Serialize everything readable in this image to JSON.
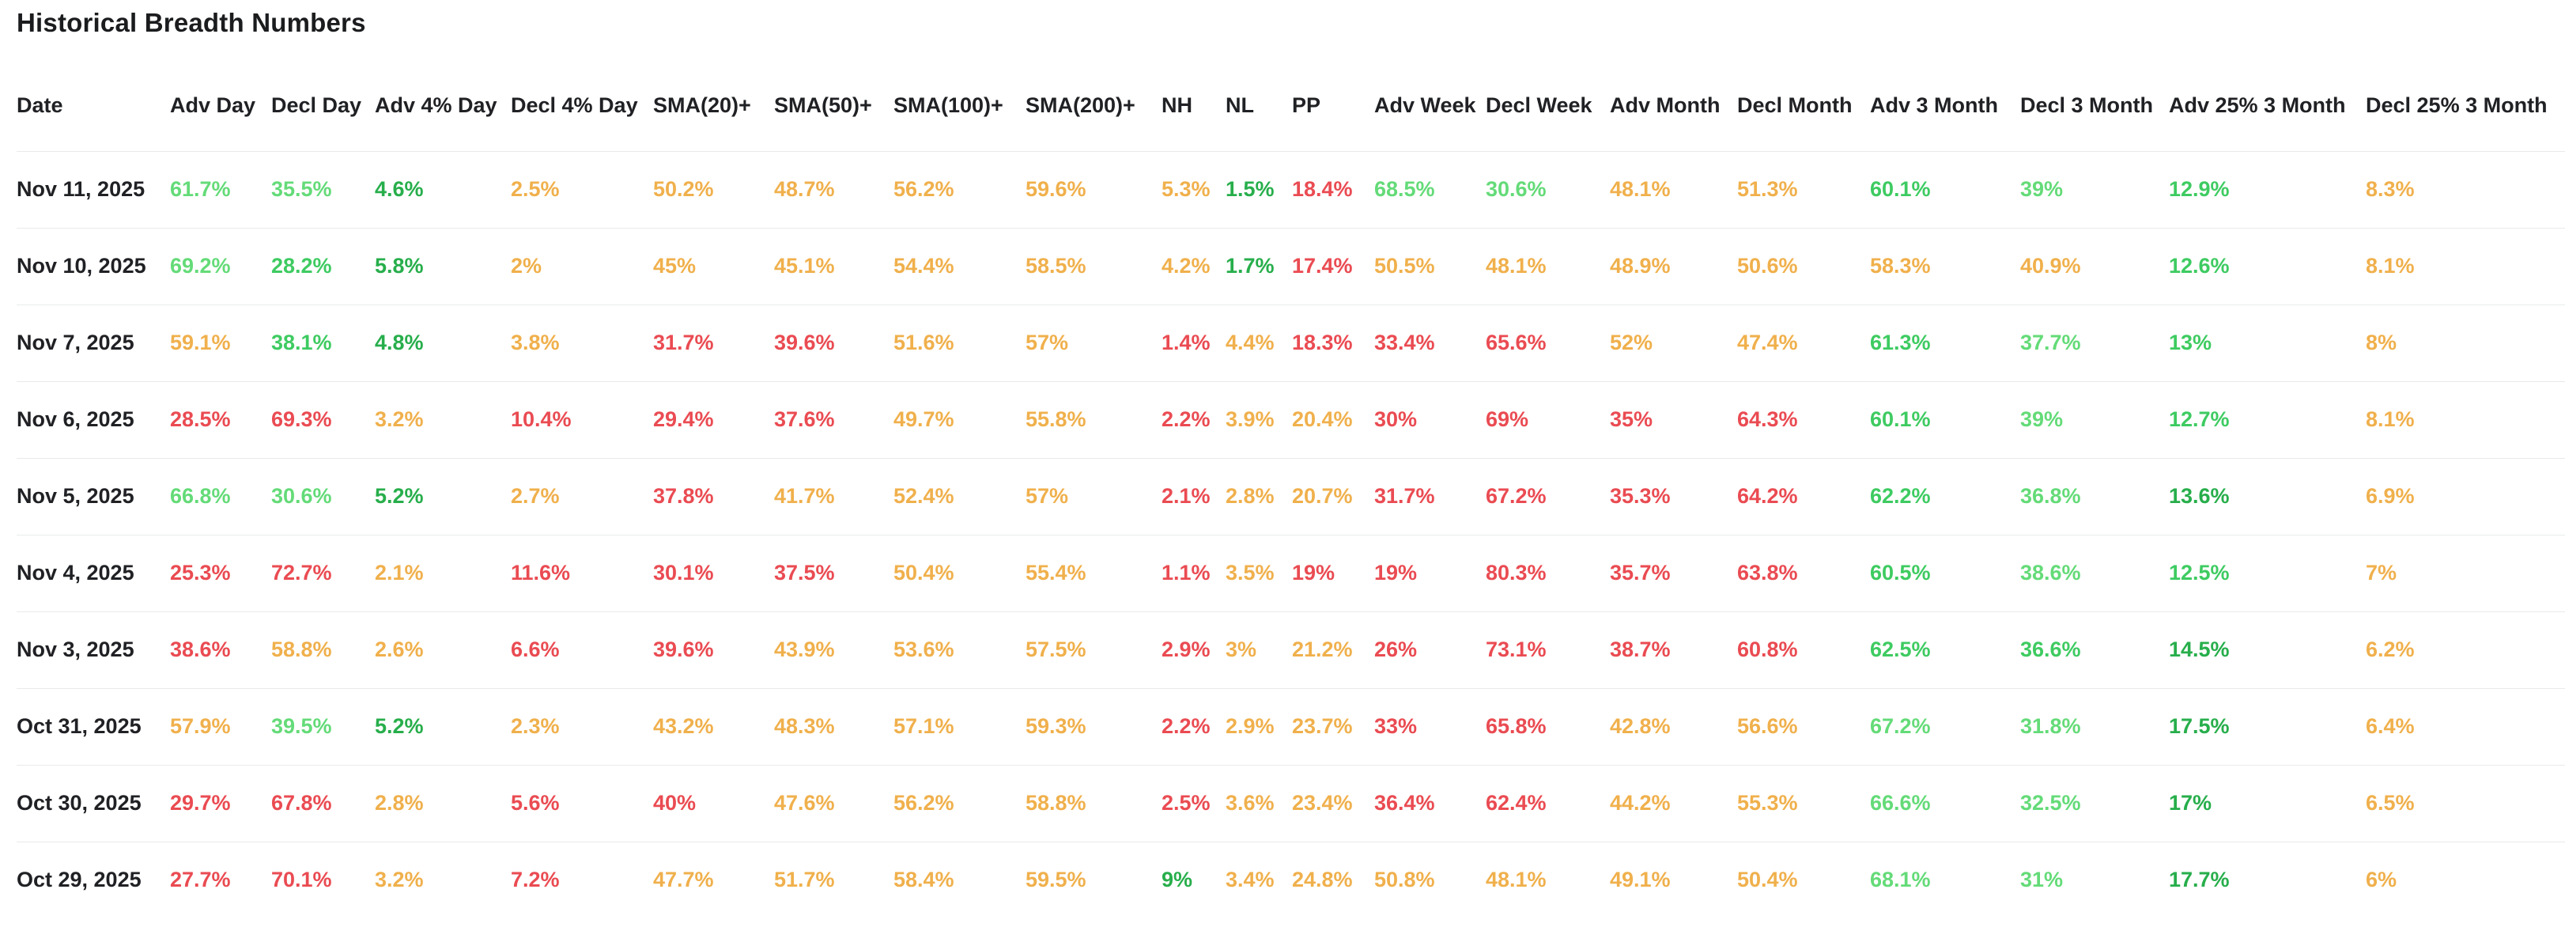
{
  "title": "Historical Breadth Numbers",
  "palette": {
    "g1": "#64db78",
    "g2": "#3ecb61",
    "g3": "#27ae4b",
    "y": "#f0b04c",
    "r": "#ea4b52"
  },
  "table": {
    "columns": [
      "Date",
      "Adv Day",
      "Decl Day",
      "Adv 4% Day",
      "Decl 4% Day",
      "SMA(20)+",
      "SMA(50)+",
      "SMA(100)+",
      "SMA(200)+",
      "NH",
      "NL",
      "PP",
      "Adv Week",
      "Decl Week",
      "Adv Month",
      "Decl Month",
      "Adv 3 Month",
      "Decl 3 Month",
      "Adv 25% 3 Month",
      "Decl 25% 3 Month"
    ],
    "rows": [
      {
        "date": "Nov 11, 2025",
        "cells": [
          [
            "61.7%",
            "g1"
          ],
          [
            "35.5%",
            "g1"
          ],
          [
            "4.6%",
            "g3"
          ],
          [
            "2.5%",
            "y"
          ],
          [
            "50.2%",
            "y"
          ],
          [
            "48.7%",
            "y"
          ],
          [
            "56.2%",
            "y"
          ],
          [
            "59.6%",
            "y"
          ],
          [
            "5.3%",
            "y"
          ],
          [
            "1.5%",
            "g3"
          ],
          [
            "18.4%",
            "r"
          ],
          [
            "68.5%",
            "g1"
          ],
          [
            "30.6%",
            "g1"
          ],
          [
            "48.1%",
            "y"
          ],
          [
            "51.3%",
            "y"
          ],
          [
            "60.1%",
            "g2"
          ],
          [
            "39%",
            "g1"
          ],
          [
            "12.9%",
            "g2"
          ],
          [
            "8.3%",
            "y"
          ]
        ]
      },
      {
        "date": "Nov 10, 2025",
        "cells": [
          [
            "69.2%",
            "g1"
          ],
          [
            "28.2%",
            "g2"
          ],
          [
            "5.8%",
            "g3"
          ],
          [
            "2%",
            "y"
          ],
          [
            "45%",
            "y"
          ],
          [
            "45.1%",
            "y"
          ],
          [
            "54.4%",
            "y"
          ],
          [
            "58.5%",
            "y"
          ],
          [
            "4.2%",
            "y"
          ],
          [
            "1.7%",
            "g3"
          ],
          [
            "17.4%",
            "r"
          ],
          [
            "50.5%",
            "y"
          ],
          [
            "48.1%",
            "y"
          ],
          [
            "48.9%",
            "y"
          ],
          [
            "50.6%",
            "y"
          ],
          [
            "58.3%",
            "y"
          ],
          [
            "40.9%",
            "y"
          ],
          [
            "12.6%",
            "g2"
          ],
          [
            "8.1%",
            "y"
          ]
        ]
      },
      {
        "date": "Nov 7, 2025",
        "cells": [
          [
            "59.1%",
            "y"
          ],
          [
            "38.1%",
            "g2"
          ],
          [
            "4.8%",
            "g3"
          ],
          [
            "3.8%",
            "y"
          ],
          [
            "31.7%",
            "r"
          ],
          [
            "39.6%",
            "r"
          ],
          [
            "51.6%",
            "y"
          ],
          [
            "57%",
            "y"
          ],
          [
            "1.4%",
            "r"
          ],
          [
            "4.4%",
            "y"
          ],
          [
            "18.3%",
            "r"
          ],
          [
            "33.4%",
            "r"
          ],
          [
            "65.6%",
            "r"
          ],
          [
            "52%",
            "y"
          ],
          [
            "47.4%",
            "y"
          ],
          [
            "61.3%",
            "g2"
          ],
          [
            "37.7%",
            "g1"
          ],
          [
            "13%",
            "g2"
          ],
          [
            "8%",
            "y"
          ]
        ]
      },
      {
        "date": "Nov 6, 2025",
        "cells": [
          [
            "28.5%",
            "r"
          ],
          [
            "69.3%",
            "r"
          ],
          [
            "3.2%",
            "y"
          ],
          [
            "10.4%",
            "r"
          ],
          [
            "29.4%",
            "r"
          ],
          [
            "37.6%",
            "r"
          ],
          [
            "49.7%",
            "y"
          ],
          [
            "55.8%",
            "y"
          ],
          [
            "2.2%",
            "r"
          ],
          [
            "3.9%",
            "y"
          ],
          [
            "20.4%",
            "y"
          ],
          [
            "30%",
            "r"
          ],
          [
            "69%",
            "r"
          ],
          [
            "35%",
            "r"
          ],
          [
            "64.3%",
            "r"
          ],
          [
            "60.1%",
            "g2"
          ],
          [
            "39%",
            "g1"
          ],
          [
            "12.7%",
            "g2"
          ],
          [
            "8.1%",
            "y"
          ]
        ]
      },
      {
        "date": "Nov 5, 2025",
        "cells": [
          [
            "66.8%",
            "g1"
          ],
          [
            "30.6%",
            "g1"
          ],
          [
            "5.2%",
            "g3"
          ],
          [
            "2.7%",
            "y"
          ],
          [
            "37.8%",
            "r"
          ],
          [
            "41.7%",
            "y"
          ],
          [
            "52.4%",
            "y"
          ],
          [
            "57%",
            "y"
          ],
          [
            "2.1%",
            "r"
          ],
          [
            "2.8%",
            "y"
          ],
          [
            "20.7%",
            "y"
          ],
          [
            "31.7%",
            "r"
          ],
          [
            "67.2%",
            "r"
          ],
          [
            "35.3%",
            "r"
          ],
          [
            "64.2%",
            "r"
          ],
          [
            "62.2%",
            "g2"
          ],
          [
            "36.8%",
            "g1"
          ],
          [
            "13.6%",
            "g3"
          ],
          [
            "6.9%",
            "y"
          ]
        ]
      },
      {
        "date": "Nov 4, 2025",
        "cells": [
          [
            "25.3%",
            "r"
          ],
          [
            "72.7%",
            "r"
          ],
          [
            "2.1%",
            "y"
          ],
          [
            "11.6%",
            "r"
          ],
          [
            "30.1%",
            "r"
          ],
          [
            "37.5%",
            "r"
          ],
          [
            "50.4%",
            "y"
          ],
          [
            "55.4%",
            "y"
          ],
          [
            "1.1%",
            "r"
          ],
          [
            "3.5%",
            "y"
          ],
          [
            "19%",
            "r"
          ],
          [
            "19%",
            "r"
          ],
          [
            "80.3%",
            "r"
          ],
          [
            "35.7%",
            "r"
          ],
          [
            "63.8%",
            "r"
          ],
          [
            "60.5%",
            "g2"
          ],
          [
            "38.6%",
            "g1"
          ],
          [
            "12.5%",
            "g2"
          ],
          [
            "7%",
            "y"
          ]
        ]
      },
      {
        "date": "Nov 3, 2025",
        "cells": [
          [
            "38.6%",
            "r"
          ],
          [
            "58.8%",
            "y"
          ],
          [
            "2.6%",
            "y"
          ],
          [
            "6.6%",
            "r"
          ],
          [
            "39.6%",
            "r"
          ],
          [
            "43.9%",
            "y"
          ],
          [
            "53.6%",
            "y"
          ],
          [
            "57.5%",
            "y"
          ],
          [
            "2.9%",
            "r"
          ],
          [
            "3%",
            "y"
          ],
          [
            "21.2%",
            "y"
          ],
          [
            "26%",
            "r"
          ],
          [
            "73.1%",
            "r"
          ],
          [
            "38.7%",
            "r"
          ],
          [
            "60.8%",
            "r"
          ],
          [
            "62.5%",
            "g2"
          ],
          [
            "36.6%",
            "g2"
          ],
          [
            "14.5%",
            "g3"
          ],
          [
            "6.2%",
            "y"
          ]
        ]
      },
      {
        "date": "Oct 31, 2025",
        "cells": [
          [
            "57.9%",
            "y"
          ],
          [
            "39.5%",
            "g1"
          ],
          [
            "5.2%",
            "g3"
          ],
          [
            "2.3%",
            "y"
          ],
          [
            "43.2%",
            "y"
          ],
          [
            "48.3%",
            "y"
          ],
          [
            "57.1%",
            "y"
          ],
          [
            "59.3%",
            "y"
          ],
          [
            "2.2%",
            "r"
          ],
          [
            "2.9%",
            "y"
          ],
          [
            "23.7%",
            "y"
          ],
          [
            "33%",
            "r"
          ],
          [
            "65.8%",
            "r"
          ],
          [
            "42.8%",
            "y"
          ],
          [
            "56.6%",
            "y"
          ],
          [
            "67.2%",
            "g1"
          ],
          [
            "31.8%",
            "g1"
          ],
          [
            "17.5%",
            "g3"
          ],
          [
            "6.4%",
            "y"
          ]
        ]
      },
      {
        "date": "Oct 30, 2025",
        "cells": [
          [
            "29.7%",
            "r"
          ],
          [
            "67.8%",
            "r"
          ],
          [
            "2.8%",
            "y"
          ],
          [
            "5.6%",
            "r"
          ],
          [
            "40%",
            "r"
          ],
          [
            "47.6%",
            "y"
          ],
          [
            "56.2%",
            "y"
          ],
          [
            "58.8%",
            "y"
          ],
          [
            "2.5%",
            "r"
          ],
          [
            "3.6%",
            "y"
          ],
          [
            "23.4%",
            "y"
          ],
          [
            "36.4%",
            "r"
          ],
          [
            "62.4%",
            "r"
          ],
          [
            "44.2%",
            "y"
          ],
          [
            "55.3%",
            "y"
          ],
          [
            "66.6%",
            "g1"
          ],
          [
            "32.5%",
            "g1"
          ],
          [
            "17%",
            "g3"
          ],
          [
            "6.5%",
            "y"
          ]
        ]
      },
      {
        "date": "Oct 29, 2025",
        "cells": [
          [
            "27.7%",
            "r"
          ],
          [
            "70.1%",
            "r"
          ],
          [
            "3.2%",
            "y"
          ],
          [
            "7.2%",
            "r"
          ],
          [
            "47.7%",
            "y"
          ],
          [
            "51.7%",
            "y"
          ],
          [
            "58.4%",
            "y"
          ],
          [
            "59.5%",
            "y"
          ],
          [
            "9%",
            "g3"
          ],
          [
            "3.4%",
            "y"
          ],
          [
            "24.8%",
            "y"
          ],
          [
            "50.8%",
            "y"
          ],
          [
            "48.1%",
            "y"
          ],
          [
            "49.1%",
            "y"
          ],
          [
            "50.4%",
            "y"
          ],
          [
            "68.1%",
            "g1"
          ],
          [
            "31%",
            "g1"
          ],
          [
            "17.7%",
            "g3"
          ],
          [
            "6%",
            "y"
          ]
        ]
      }
    ]
  }
}
